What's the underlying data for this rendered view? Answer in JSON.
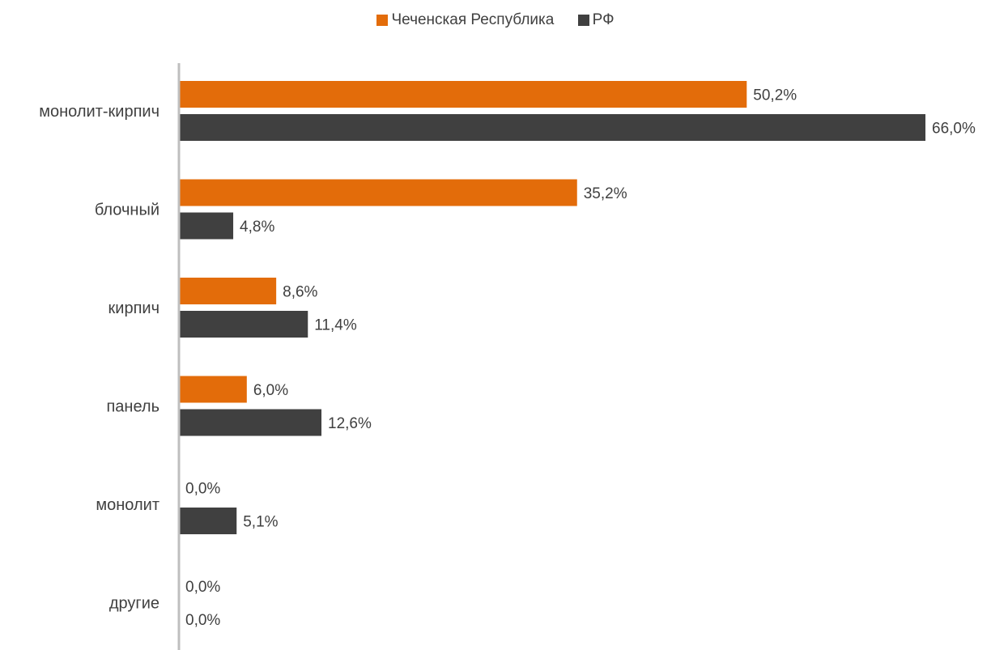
{
  "chart_data": {
    "type": "bar",
    "orientation": "horizontal",
    "categories": [
      "монолит-кирпич",
      "блочный",
      "кирпич",
      "панель",
      "монолит",
      "другие"
    ],
    "series": [
      {
        "name": "Чеченская Республика",
        "color": "#E36C0A",
        "values": [
          50.2,
          35.2,
          8.6,
          6.0,
          0.0,
          0.0
        ],
        "labels": [
          "50,2%",
          "35,2%",
          "8,6%",
          "6,0%",
          "0,0%",
          "0,0%"
        ]
      },
      {
        "name": "РФ",
        "color": "#404040",
        "values": [
          66.0,
          4.8,
          11.4,
          12.6,
          5.1,
          0.0
        ],
        "labels": [
          "66,0%",
          "4,8%",
          "11,4%",
          "12,6%",
          "5,1%",
          "0,0%"
        ]
      }
    ],
    "xlim": [
      0,
      67
    ],
    "legend_position": "top-center",
    "grid": false
  }
}
